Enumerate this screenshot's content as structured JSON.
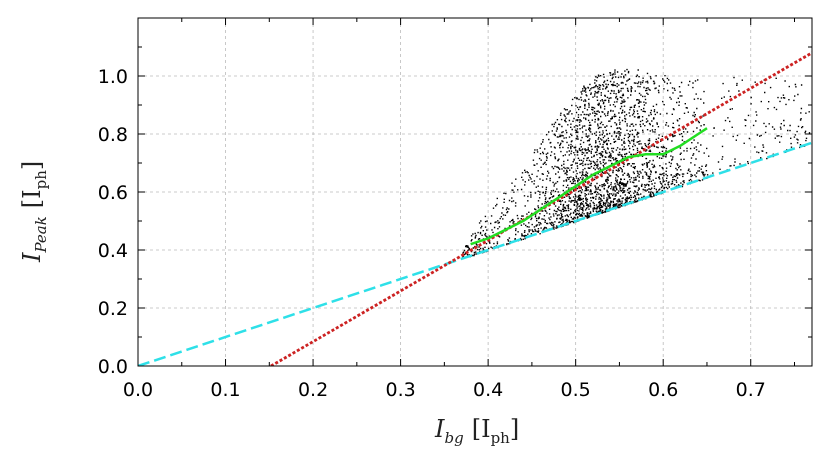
{
  "chart_data": {
    "type": "scatter",
    "title": "",
    "xlabel": {
      "main": "I",
      "sub": "bg",
      "unit_main": "I",
      "unit_sub": "ph"
    },
    "ylabel": {
      "main": "I",
      "sub": "Peak",
      "unit_main": "I",
      "unit_sub": "ph"
    },
    "xlim": [
      0.0,
      0.77
    ],
    "ylim": [
      0.0,
      1.2
    ],
    "x_ticks": [
      "0.0",
      "0.1",
      "0.2",
      "0.3",
      "0.4",
      "0.5",
      "0.6",
      "0.7"
    ],
    "y_ticks": [
      "0.0",
      "0.2",
      "0.4",
      "0.6",
      "0.8",
      "1.0"
    ],
    "grid": true,
    "series": [
      {
        "style": "scatter-cloud",
        "color": "#000000",
        "lower_bound_line": {
          "slope": 1.0,
          "intercept": 0.0
        },
        "envelope": {
          "x": [
            0.37,
            0.4,
            0.43,
            0.46,
            0.49,
            0.52,
            0.55,
            0.58,
            0.61,
            0.64,
            0.67,
            0.7,
            0.73,
            0.76
          ],
          "upper": [
            0.4,
            0.55,
            0.65,
            0.78,
            0.92,
            1.0,
            1.03,
            1.02,
            1.0,
            0.99,
            1.0,
            1.01,
            1.0,
            0.98
          ]
        }
      },
      {
        "style": "line",
        "color": "#22dd22",
        "dash": "solid",
        "x": [
          0.38,
          0.4,
          0.42,
          0.44,
          0.46,
          0.48,
          0.5,
          0.52,
          0.54,
          0.56,
          0.58,
          0.6,
          0.62,
          0.64,
          0.65
        ],
        "y": [
          0.42,
          0.44,
          0.47,
          0.5,
          0.54,
          0.58,
          0.62,
          0.66,
          0.69,
          0.72,
          0.73,
          0.73,
          0.76,
          0.8,
          0.82
        ]
      },
      {
        "style": "line",
        "color": "#cc2222",
        "dash": "dotted",
        "x": [
          0.152,
          0.77
        ],
        "y": [
          0.0,
          1.08
        ]
      },
      {
        "style": "line",
        "color": "#2ee0e8",
        "dash": "dashed",
        "x": [
          0.0,
          0.77
        ],
        "y": [
          0.0,
          0.77
        ]
      }
    ]
  }
}
